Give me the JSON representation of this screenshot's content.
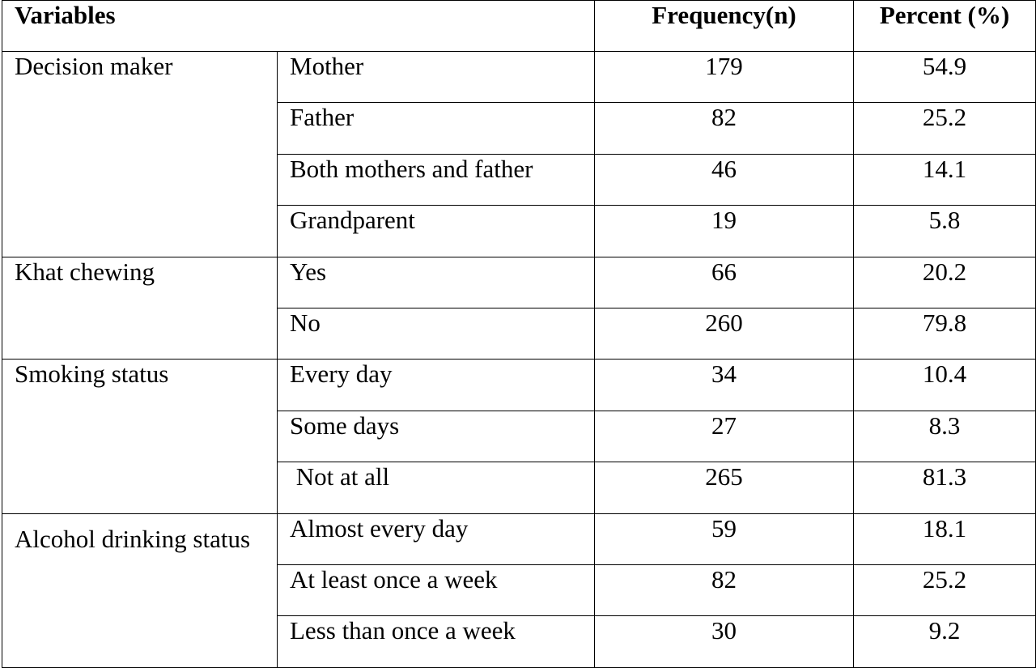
{
  "table": {
    "headers": {
      "variables": "Variables",
      "frequency": "Frequency(n)",
      "percent": "Percent (%)"
    },
    "groups": [
      {
        "variable": "Decision maker",
        "rows": [
          {
            "category": "Mother",
            "frequency": "179",
            "percent": "54.9"
          },
          {
            "category": "Father",
            "frequency": "82",
            "percent": "25.2"
          },
          {
            "category": "Both mothers and father",
            "frequency": "46",
            "percent": "14.1"
          },
          {
            "category": "Grandparent",
            "frequency": "19",
            "percent": "5.8"
          }
        ]
      },
      {
        "variable": "Khat chewing",
        "rows": [
          {
            "category": "Yes",
            "frequency": "66",
            "percent": "20.2"
          },
          {
            "category": "No",
            "frequency": "260",
            "percent": "79.8"
          }
        ]
      },
      {
        "variable": "Smoking status",
        "rows": [
          {
            "category": "Every day",
            "frequency": "34",
            "percent": "10.4"
          },
          {
            "category": "Some days",
            "frequency": "27",
            "percent": "8.3"
          },
          {
            "category": " Not at all",
            "frequency": "265",
            "percent": "81.3"
          }
        ]
      },
      {
        "variable": "Alcohol drinking status",
        "rows": [
          {
            "category": "Almost every day",
            "frequency": "59",
            "percent": "18.1"
          },
          {
            "category": "At least once a week",
            "frequency": "82",
            "percent": "25.2"
          },
          {
            "category": "Less than once a week",
            "frequency": "30",
            "percent": "9.2"
          }
        ]
      }
    ]
  }
}
